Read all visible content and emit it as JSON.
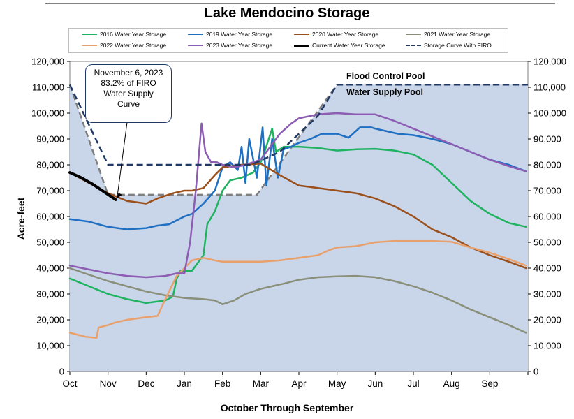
{
  "chart_data": {
    "type": "line",
    "title": "Lake Mendocino Storage",
    "xlabel": "October Through September",
    "ylabel": "Acre-feet",
    "ylim": [
      0,
      120000
    ],
    "xlim": [
      0,
      12
    ],
    "yticks": [
      0,
      10000,
      20000,
      30000,
      40000,
      50000,
      60000,
      70000,
      80000,
      90000,
      100000,
      110000,
      120000
    ],
    "ytick_labels": [
      "0",
      "10,000",
      "20,000",
      "30,000",
      "40,000",
      "50,000",
      "60,000",
      "70,000",
      "80,000",
      "90,000",
      "100,000",
      "110,000",
      "120,000"
    ],
    "categories": [
      "Oct",
      "Nov",
      "Dec",
      "Jan",
      "Feb",
      "Mar",
      "Apr",
      "May",
      "Jun",
      "Jul",
      "Aug",
      "Sep"
    ],
    "x_unit": "months since Oct 1",
    "secondary_y_axis": "right, same scale",
    "grid": false,
    "legend_position": "top",
    "background_fill": {
      "color": "#c9d6e9",
      "outline": "#7f7f7f"
    },
    "annotations": {
      "callout_lines": [
        "November 6, 2023",
        "83.2% of FIRO",
        "Water Supply",
        "Curve"
      ],
      "callout_target": [
        1.2,
        66500
      ],
      "flood_control_pool": "Flood Control Pool",
      "water_supply_pool": "Water Supply Pool"
    },
    "series": [
      {
        "name": "2016 Water Year Storage",
        "color": "#1fb360",
        "x": [
          0,
          0.5,
          1,
          1.5,
          2,
          2.5,
          2.7,
          2.8,
          2.9,
          3.2,
          3.5,
          3.6,
          3.8,
          4,
          4.2,
          4.5,
          4.8,
          5,
          5.1,
          5.3,
          5.4,
          5.6,
          6,
          6.5,
          7,
          7.5,
          8,
          8.5,
          9,
          9.5,
          10,
          10.5,
          11,
          11.5,
          11.95
        ],
        "y": [
          36000,
          33000,
          30000,
          28000,
          26500,
          27500,
          29000,
          36000,
          39000,
          39000,
          45000,
          57000,
          62000,
          70000,
          74000,
          75000,
          77000,
          81000,
          85000,
          94000,
          85000,
          87000,
          87000,
          86500,
          85500,
          86000,
          86200,
          85500,
          84000,
          80000,
          73000,
          66000,
          61000,
          57500,
          56000
        ]
      },
      {
        "name": "2019 Water Year Storage",
        "color": "#1f6fc2",
        "x": [
          0,
          0.5,
          1,
          1.5,
          2,
          2.3,
          2.6,
          3.0,
          3.2,
          3.5,
          3.8,
          4,
          4.2,
          4.4,
          4.5,
          4.6,
          4.7,
          4.9,
          5.05,
          5.15,
          5.3,
          5.45,
          5.6,
          5.8,
          6,
          6.3,
          6.6,
          7,
          7.3,
          7.6,
          7.9,
          8,
          8.3,
          8.6,
          9,
          9.5,
          10,
          10.5,
          11,
          11.5,
          11.95
        ],
        "y": [
          59000,
          58000,
          56000,
          55000,
          55500,
          56500,
          57000,
          60000,
          61000,
          65000,
          70000,
          79000,
          81000,
          78000,
          87000,
          73000,
          90000,
          75000,
          94500,
          72000,
          90000,
          75000,
          86000,
          87000,
          88500,
          90000,
          92000,
          92000,
          90500,
          94500,
          94500,
          94000,
          93000,
          92000,
          91500,
          90000,
          88000,
          85000,
          82000,
          80000,
          77500
        ]
      },
      {
        "name": "2020 Water Year Storage",
        "color": "#9b4f1a",
        "x": [
          0,
          0.5,
          1,
          1.5,
          2,
          2.3,
          2.7,
          3,
          3.2,
          3.5,
          3.8,
          4,
          4.5,
          5,
          5.5,
          6,
          6.5,
          7,
          7.5,
          8,
          8.5,
          9,
          9.5,
          10,
          10.5,
          11,
          11.5,
          11.95
        ],
        "y": [
          77000,
          73000,
          69000,
          66000,
          65000,
          67000,
          69000,
          70000,
          70000,
          71000,
          76000,
          79000,
          80000,
          80500,
          76000,
          72000,
          71000,
          70000,
          69000,
          67000,
          64000,
          60000,
          55000,
          52000,
          48000,
          45000,
          42500,
          40000
        ]
      },
      {
        "name": "2021 Water Year Storage",
        "color": "#8a8f7a",
        "x": [
          0,
          0.5,
          1,
          1.5,
          2,
          2.5,
          3,
          3.5,
          3.8,
          4,
          4.3,
          4.6,
          5,
          5.3,
          5.6,
          6,
          6.5,
          7,
          7.5,
          8,
          8.5,
          9,
          9.5,
          10,
          10.5,
          11,
          11.5,
          11.95
        ],
        "y": [
          40000,
          37500,
          35000,
          33000,
          31000,
          29500,
          28500,
          28000,
          27500,
          26000,
          27500,
          30000,
          32000,
          33000,
          34000,
          35500,
          36500,
          36800,
          37000,
          36500,
          35000,
          33000,
          30500,
          27500,
          24000,
          21000,
          18000,
          15000
        ]
      },
      {
        "name": "2022 Water Year Storage",
        "color": "#e8a06c",
        "x": [
          0,
          0.4,
          0.7,
          0.75,
          1,
          1.2,
          1.5,
          2,
          2.3,
          2.5,
          2.8,
          3.2,
          3.5,
          3.8,
          4,
          4.5,
          5,
          5.5,
          6,
          6.5,
          6.8,
          7,
          7.5,
          8,
          8.5,
          9,
          9.5,
          10,
          10.5,
          11,
          11.5,
          11.95
        ],
        "y": [
          15000,
          13500,
          13000,
          17000,
          18000,
          19000,
          20000,
          21000,
          21500,
          28000,
          37000,
          43000,
          44000,
          43000,
          42500,
          42500,
          42500,
          43000,
          44000,
          45000,
          47000,
          48000,
          48500,
          50000,
          50500,
          50500,
          50500,
          50200,
          48000,
          46000,
          43500,
          41000
        ]
      },
      {
        "name": "2023 Water Year Storage",
        "color": "#8c5db3",
        "x": [
          0,
          0.5,
          1,
          1.5,
          2,
          2.5,
          2.8,
          3.0,
          3.15,
          3.3,
          3.45,
          3.55,
          3.7,
          3.85,
          4,
          4.3,
          4.6,
          4.8,
          5,
          5.2,
          5.5,
          5.8,
          6,
          6.5,
          7,
          7.5,
          8,
          8.5,
          9,
          9.5,
          10,
          10.5,
          11,
          11.5,
          11.95
        ],
        "y": [
          41000,
          39500,
          38000,
          37000,
          36500,
          37000,
          38000,
          38000,
          50000,
          70000,
          96000,
          85000,
          81000,
          81000,
          80000,
          79000,
          80000,
          81000,
          82000,
          86000,
          92000,
          96000,
          98000,
          99500,
          100000,
          99500,
          99500,
          97000,
          94000,
          91000,
          88000,
          85000,
          82000,
          79500,
          77500
        ]
      },
      {
        "name": "Current Water Year Storage",
        "color": "#000000",
        "x": [
          0,
          0.3,
          0.6,
          0.9,
          1.2
        ],
        "y": [
          77000,
          75000,
          72500,
          69500,
          66500
        ]
      },
      {
        "name": "Storage Curve With FIRO",
        "color": "#1f3864",
        "dashed": true,
        "x": [
          0,
          1,
          1.01,
          4.75,
          5.5,
          6.5,
          7,
          12
        ],
        "y": [
          111000,
          80000,
          80000,
          80000,
          85000,
          99000,
          111000,
          111000
        ]
      }
    ],
    "reference_curves": [
      {
        "name": "water supply pool boundary",
        "color": "#7f7f7f",
        "dashed": true,
        "x": [
          0,
          1,
          1.01,
          4.9,
          7,
          12
        ],
        "y": [
          111000,
          68400,
          68400,
          68400,
          111000,
          111000
        ]
      }
    ]
  }
}
